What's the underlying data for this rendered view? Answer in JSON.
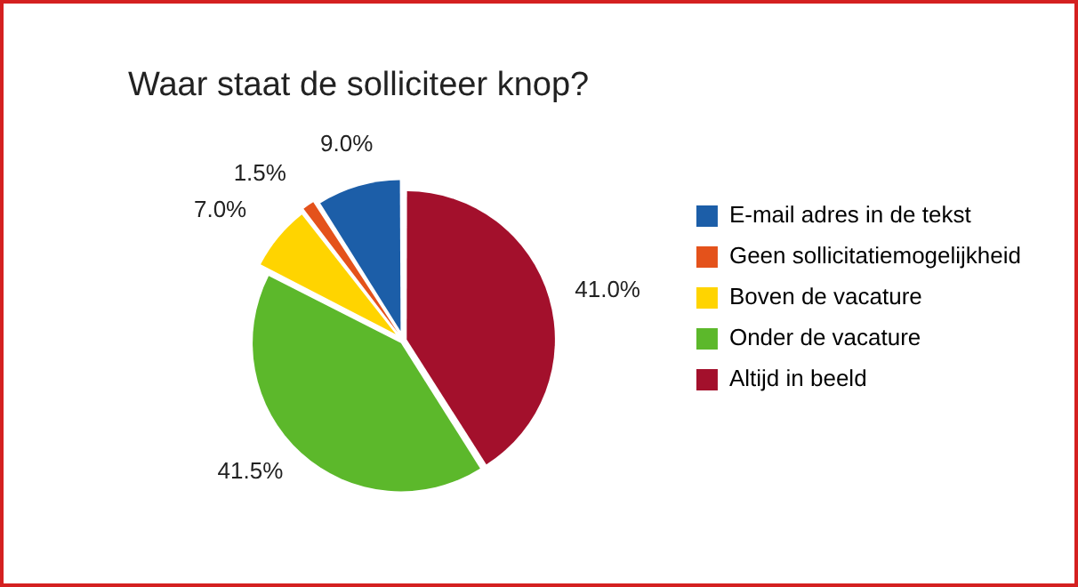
{
  "chart_data": {
    "type": "pie",
    "title": "Waar staat de solliciteer knop?",
    "categories": [
      "E-mail adres in de tekst",
      "Geen sollicitatiemogelijkheid",
      "Boven de vacature",
      "Onder de vacature",
      "Altijd in beeld"
    ],
    "values": [
      9.0,
      1.5,
      7.0,
      41.5,
      41.0
    ],
    "colors": [
      "#1c5ea8",
      "#e4521b",
      "#ffd400",
      "#5cb82b",
      "#a3102c"
    ],
    "value_labels": [
      "9.0%",
      "1.5%",
      "7.0%",
      "41.5%",
      "41.0%"
    ],
    "legend": "right"
  }
}
